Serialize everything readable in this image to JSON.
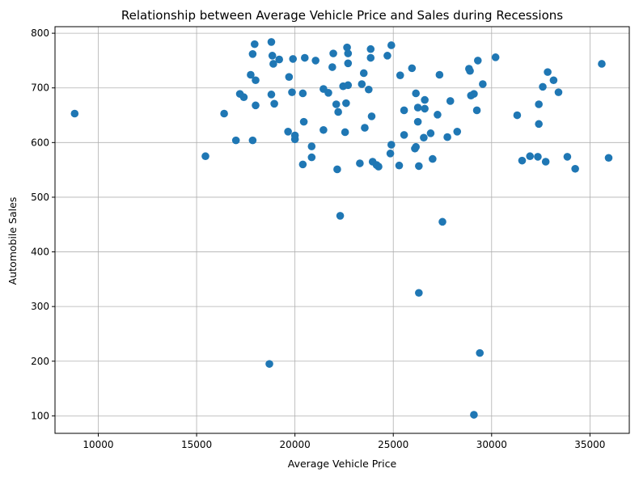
{
  "chart_data": {
    "type": "scatter",
    "title": "Relationship between Average Vehicle Price and Sales during Recessions",
    "xlabel": "Average Vehicle Price",
    "ylabel": "Automobile Sales",
    "xlim": [
      7800,
      37000
    ],
    "ylim": [
      68,
      812
    ],
    "xticks": [
      10000,
      15000,
      20000,
      25000,
      30000,
      35000
    ],
    "yticks": [
      100,
      200,
      300,
      400,
      500,
      600,
      700,
      800
    ],
    "grid": true,
    "color": "#1f77b4",
    "points": [
      [
        8800,
        653
      ],
      [
        15450,
        575
      ],
      [
        16400,
        653
      ],
      [
        17000,
        604
      ],
      [
        17200,
        689
      ],
      [
        17400,
        683
      ],
      [
        17750,
        724
      ],
      [
        17850,
        762
      ],
      [
        17850,
        604
      ],
      [
        17950,
        780
      ],
      [
        18000,
        714
      ],
      [
        18000,
        668
      ],
      [
        18700,
        195
      ],
      [
        18800,
        688
      ],
      [
        18800,
        784
      ],
      [
        18850,
        759
      ],
      [
        18900,
        744
      ],
      [
        18950,
        671
      ],
      [
        19200,
        752
      ],
      [
        19650,
        620
      ],
      [
        19700,
        720
      ],
      [
        19850,
        692
      ],
      [
        19900,
        753
      ],
      [
        20000,
        606
      ],
      [
        20000,
        613
      ],
      [
        20400,
        690
      ],
      [
        20400,
        560
      ],
      [
        20450,
        638
      ],
      [
        20500,
        755
      ],
      [
        20850,
        593
      ],
      [
        20850,
        573
      ],
      [
        21050,
        750
      ],
      [
        21450,
        698
      ],
      [
        21450,
        623
      ],
      [
        21700,
        691
      ],
      [
        21900,
        738
      ],
      [
        21950,
        763
      ],
      [
        22100,
        670
      ],
      [
        22150,
        551
      ],
      [
        22200,
        656
      ],
      [
        22300,
        466
      ],
      [
        22450,
        703
      ],
      [
        22550,
        619
      ],
      [
        22600,
        672
      ],
      [
        22650,
        774
      ],
      [
        22700,
        763
      ],
      [
        22700,
        745
      ],
      [
        22700,
        705
      ],
      [
        23300,
        562
      ],
      [
        23400,
        707
      ],
      [
        23500,
        727
      ],
      [
        23550,
        627
      ],
      [
        23750,
        697
      ],
      [
        23850,
        755
      ],
      [
        23850,
        771
      ],
      [
        23900,
        648
      ],
      [
        23950,
        565
      ],
      [
        24150,
        559
      ],
      [
        24250,
        556
      ],
      [
        24700,
        759
      ],
      [
        24850,
        580
      ],
      [
        24900,
        778
      ],
      [
        24900,
        596
      ],
      [
        25300,
        558
      ],
      [
        25350,
        723
      ],
      [
        25550,
        614
      ],
      [
        25550,
        659
      ],
      [
        25950,
        736
      ],
      [
        26100,
        589
      ],
      [
        26150,
        592
      ],
      [
        26150,
        690
      ],
      [
        26250,
        664
      ],
      [
        26250,
        638
      ],
      [
        26300,
        557
      ],
      [
        26300,
        325
      ],
      [
        26550,
        609
      ],
      [
        26600,
        678
      ],
      [
        26600,
        662
      ],
      [
        26900,
        617
      ],
      [
        27000,
        570
      ],
      [
        27250,
        651
      ],
      [
        27350,
        724
      ],
      [
        27500,
        455
      ],
      [
        27750,
        610
      ],
      [
        27900,
        676
      ],
      [
        28250,
        620
      ],
      [
        28850,
        735
      ],
      [
        28900,
        731
      ],
      [
        28950,
        686
      ],
      [
        29100,
        689
      ],
      [
        29100,
        102
      ],
      [
        29250,
        659
      ],
      [
        29300,
        750
      ],
      [
        29400,
        215
      ],
      [
        29550,
        707
      ],
      [
        30200,
        756
      ],
      [
        31300,
        650
      ],
      [
        31550,
        567
      ],
      [
        31950,
        575
      ],
      [
        32350,
        574
      ],
      [
        32400,
        634
      ],
      [
        32400,
        670
      ],
      [
        32600,
        702
      ],
      [
        32750,
        565
      ],
      [
        32850,
        729
      ],
      [
        33150,
        714
      ],
      [
        33400,
        692
      ],
      [
        33850,
        574
      ],
      [
        34250,
        552
      ],
      [
        35600,
        744
      ],
      [
        35950,
        572
      ]
    ]
  }
}
